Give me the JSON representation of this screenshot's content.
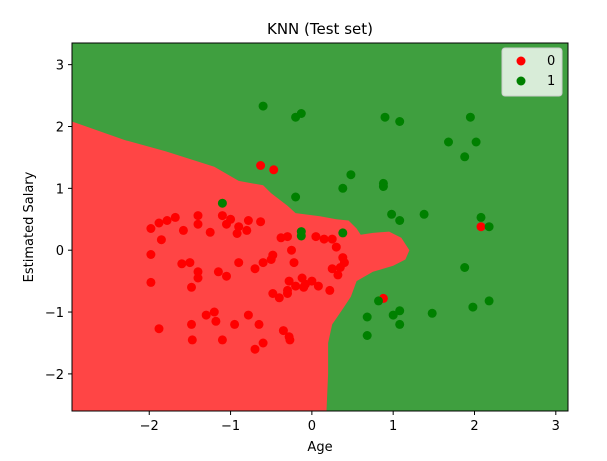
{
  "chart_data": {
    "type": "scatter",
    "title": "KNN (Test set)",
    "xlabel": "Age",
    "ylabel": "Estimated Salary",
    "xlim": [
      -2.95,
      3.15
    ],
    "ylim": [
      -2.6,
      3.35
    ],
    "xticks": [
      -2,
      -1,
      0,
      1,
      2,
      3
    ],
    "xtick_labels": [
      "−2",
      "−1",
      "0",
      "1",
      "2",
      "3"
    ],
    "yticks": [
      -2,
      -1,
      0,
      1,
      2,
      3
    ],
    "ytick_labels": [
      "−2",
      "−1",
      "0",
      "1",
      "2",
      "3"
    ],
    "grid": false,
    "legend_position": "top-right",
    "background_regions": {
      "class_0_color": "#ff4545",
      "class_1_color": "#3f9f3f",
      "class_0_region_boundary": [
        [
          -2.95,
          2.08
        ],
        [
          -2.3,
          1.78
        ],
        [
          -1.8,
          1.6
        ],
        [
          -1.2,
          1.35
        ],
        [
          -0.9,
          1.12
        ],
        [
          -0.6,
          1.05
        ],
        [
          -0.5,
          0.92
        ],
        [
          -0.3,
          0.72
        ],
        [
          -0.2,
          0.6
        ],
        [
          0.1,
          0.55
        ],
        [
          0.3,
          0.5
        ],
        [
          0.45,
          0.48
        ],
        [
          0.55,
          0.35
        ],
        [
          0.6,
          0.25
        ],
        [
          0.75,
          0.28
        ],
        [
          0.95,
          0.3
        ],
        [
          1.1,
          0.2
        ],
        [
          1.2,
          0.0
        ],
        [
          1.15,
          -0.15
        ],
        [
          1.0,
          -0.25
        ],
        [
          0.75,
          -0.35
        ],
        [
          0.55,
          -0.5
        ],
        [
          0.48,
          -0.75
        ],
        [
          0.38,
          -0.95
        ],
        [
          0.25,
          -1.2
        ],
        [
          0.2,
          -1.5
        ],
        [
          0.2,
          -2.0
        ],
        [
          0.18,
          -2.6
        ],
        [
          -2.95,
          -2.6
        ]
      ]
    },
    "series": [
      {
        "name": "0",
        "color": "#ff0000",
        "points": [
          [
            -0.63,
            1.37
          ],
          [
            -0.47,
            1.3
          ],
          [
            0.88,
            -0.78
          ],
          [
            2.08,
            0.38
          ],
          [
            -1.98,
            0.35
          ],
          [
            -1.88,
            0.44
          ],
          [
            -1.78,
            0.48
          ],
          [
            -1.68,
            0.53
          ],
          [
            -1.58,
            0.32
          ],
          [
            -1.4,
            0.42
          ],
          [
            -1.4,
            0.56
          ],
          [
            -1.25,
            0.29
          ],
          [
            -1.1,
            0.56
          ],
          [
            -1.0,
            0.5
          ],
          [
            -0.9,
            0.38
          ],
          [
            -0.8,
            0.32
          ],
          [
            -0.78,
            0.48
          ],
          [
            -0.63,
            0.46
          ],
          [
            -0.92,
            0.27
          ],
          [
            -1.05,
            0.42
          ],
          [
            -1.85,
            0.17
          ],
          [
            -1.98,
            -0.07
          ],
          [
            -1.5,
            -0.2
          ],
          [
            -1.6,
            -0.22
          ],
          [
            -1.4,
            -0.35
          ],
          [
            -1.4,
            -0.45
          ],
          [
            -1.15,
            -0.35
          ],
          [
            -1.05,
            -0.42
          ],
          [
            -0.9,
            -0.2
          ],
          [
            -0.7,
            -0.3
          ],
          [
            -0.6,
            -0.2
          ],
          [
            -0.5,
            -0.15
          ],
          [
            -0.48,
            -0.08
          ],
          [
            -0.38,
            0.2
          ],
          [
            -0.3,
            0.22
          ],
          [
            -0.25,
            0.0
          ],
          [
            -0.22,
            -0.2
          ],
          [
            -0.28,
            -0.5
          ],
          [
            -0.3,
            -0.7
          ],
          [
            -0.3,
            -0.65
          ],
          [
            -0.2,
            -0.58
          ],
          [
            -0.12,
            -0.45
          ],
          [
            -0.08,
            -0.55
          ],
          [
            -0.1,
            -0.6
          ],
          [
            0.05,
            0.22
          ],
          [
            0.15,
            0.18
          ],
          [
            0.25,
            0.18
          ],
          [
            0.3,
            0.05
          ],
          [
            0.4,
            -0.2
          ],
          [
            0.25,
            -0.3
          ],
          [
            0.35,
            -0.28
          ],
          [
            0.38,
            -0.12
          ],
          [
            0.32,
            -0.4
          ],
          [
            0.22,
            -0.65
          ],
          [
            0.08,
            -0.58
          ],
          [
            0.0,
            -0.5
          ],
          [
            -1.98,
            -0.52
          ],
          [
            -1.48,
            -0.6
          ],
          [
            -1.3,
            -1.05
          ],
          [
            -1.2,
            -1.0
          ],
          [
            -1.18,
            -1.15
          ],
          [
            -1.48,
            -1.2
          ],
          [
            -1.47,
            -1.45
          ],
          [
            -1.1,
            -1.45
          ],
          [
            -0.95,
            -1.2
          ],
          [
            -0.78,
            -1.05
          ],
          [
            -0.65,
            -1.2
          ],
          [
            -0.6,
            -1.5
          ],
          [
            -0.7,
            -1.6
          ],
          [
            -0.35,
            -1.3
          ],
          [
            -0.28,
            -1.4
          ],
          [
            -0.27,
            -1.45
          ],
          [
            -0.4,
            -0.77
          ],
          [
            -0.48,
            -0.7
          ],
          [
            -1.88,
            -1.27
          ]
        ]
      },
      {
        "name": "1",
        "color": "#008000",
        "points": [
          [
            -0.6,
            2.33
          ],
          [
            -0.2,
            2.15
          ],
          [
            -0.13,
            2.21
          ],
          [
            0.9,
            2.15
          ],
          [
            1.08,
            2.08
          ],
          [
            1.95,
            2.15
          ],
          [
            1.68,
            1.75
          ],
          [
            2.02,
            1.75
          ],
          [
            1.88,
            1.51
          ],
          [
            0.48,
            1.22
          ],
          [
            0.88,
            1.08
          ],
          [
            0.88,
            1.03
          ],
          [
            0.38,
            1.0
          ],
          [
            -0.2,
            0.86
          ],
          [
            -1.1,
            0.76
          ],
          [
            0.98,
            0.58
          ],
          [
            1.08,
            0.48
          ],
          [
            1.38,
            0.58
          ],
          [
            2.08,
            0.53
          ],
          [
            2.18,
            0.38
          ],
          [
            -0.13,
            0.3
          ],
          [
            -0.13,
            0.23
          ],
          [
            0.38,
            0.28
          ],
          [
            1.88,
            -0.28
          ],
          [
            0.82,
            -0.82
          ],
          [
            0.68,
            -1.08
          ],
          [
            1.08,
            -0.98
          ],
          [
            1.0,
            -1.05
          ],
          [
            1.08,
            -1.2
          ],
          [
            1.48,
            -1.02
          ],
          [
            1.98,
            -0.92
          ],
          [
            2.18,
            -0.82
          ],
          [
            0.68,
            -1.38
          ]
        ]
      }
    ]
  }
}
